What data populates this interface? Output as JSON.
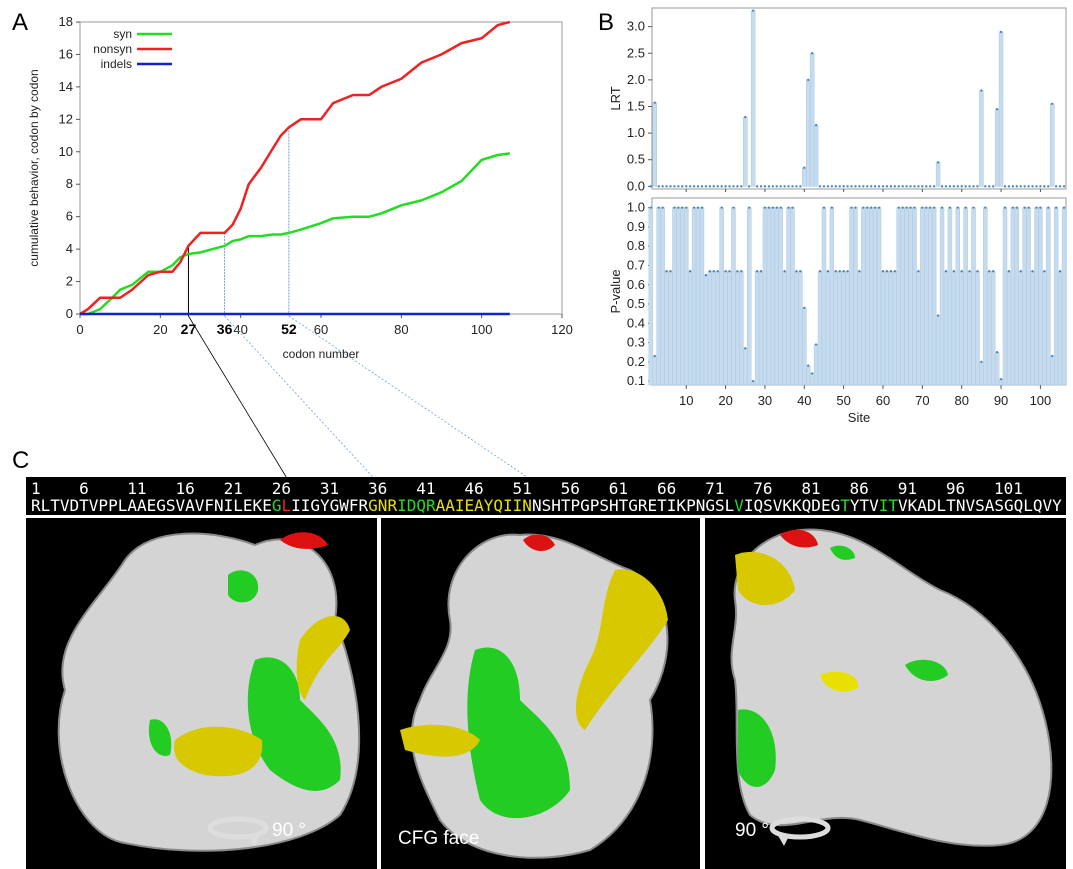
{
  "panel_labels": [
    "A",
    "B",
    "C"
  ],
  "chart_data": [
    {
      "type": "line",
      "ylabel": "cumulative behavior, codon by codon",
      "xlabel": "codon number",
      "x": [
        0,
        2,
        5,
        8,
        10,
        13,
        17,
        20,
        23,
        25,
        27,
        30,
        33,
        36,
        38,
        40,
        42,
        45,
        48,
        50,
        52,
        55,
        60,
        63,
        68,
        72,
        75,
        80,
        85,
        90,
        95,
        100,
        104,
        107
      ],
      "series": [
        {
          "name": "syn",
          "color": "#22dd22",
          "values": [
            0,
            0,
            0.3,
            1,
            1.5,
            1.8,
            2.6,
            2.6,
            3,
            3.5,
            3.7,
            3.8,
            4,
            4.2,
            4.5,
            4.6,
            4.8,
            4.8,
            4.9,
            4.9,
            5,
            5.2,
            5.6,
            5.9,
            6,
            6,
            6.2,
            6.7,
            7,
            7.5,
            8.2,
            9.5,
            9.8,
            9.9
          ]
        },
        {
          "name": "nonsyn",
          "color": "#ee2222",
          "values": [
            0,
            0.3,
            1,
            1,
            1,
            1.5,
            2.4,
            2.6,
            2.6,
            3.2,
            4.2,
            5,
            5,
            5,
            5.5,
            6.5,
            8,
            9,
            10.2,
            11,
            11.5,
            12,
            12,
            13,
            13.5,
            13.5,
            14,
            14.5,
            15.5,
            16,
            16.7,
            17,
            17.8,
            18
          ]
        },
        {
          "name": "indels",
          "color": "#1122cc",
          "values": [
            0,
            0,
            0,
            0,
            0,
            0,
            0,
            0,
            0,
            0,
            0,
            0,
            0,
            0,
            0,
            0,
            0,
            0,
            0,
            0,
            0,
            0,
            0,
            0,
            0,
            0,
            0,
            0,
            0,
            0,
            0,
            0,
            0,
            0
          ]
        }
      ],
      "xlim": [
        0,
        120
      ],
      "ylim": [
        0,
        18
      ],
      "xticks": [
        0,
        20,
        40,
        60,
        80,
        100,
        120
      ],
      "yticks": [
        0,
        2,
        4,
        6,
        8,
        10,
        12,
        14,
        16,
        18
      ],
      "markers": [
        27,
        36,
        52
      ],
      "legend": "upper left"
    },
    {
      "type": "step",
      "ylabel": "LRT",
      "x": [
        1,
        2,
        3,
        4,
        5,
        6,
        7,
        8,
        9,
        10,
        11,
        12,
        13,
        14,
        15,
        16,
        17,
        18,
        19,
        20,
        21,
        22,
        23,
        24,
        25,
        26,
        27,
        28,
        29,
        30,
        31,
        32,
        33,
        34,
        35,
        36,
        37,
        38,
        39,
        40,
        41,
        42,
        43,
        44,
        45,
        46,
        47,
        48,
        49,
        50,
        51,
        52,
        53,
        54,
        55,
        56,
        57,
        58,
        59,
        60,
        61,
        62,
        63,
        64,
        65,
        66,
        67,
        68,
        69,
        70,
        71,
        72,
        73,
        74,
        75,
        76,
        77,
        78,
        79,
        80,
        81,
        82,
        83,
        84,
        85,
        86,
        87,
        88,
        89,
        90,
        91,
        92,
        93,
        94,
        95,
        96,
        97,
        98,
        99,
        100,
        101,
        102,
        103,
        104,
        105,
        106
      ],
      "values": [
        0,
        1.57,
        0,
        0,
        0,
        0,
        0,
        0,
        0,
        0,
        0,
        0,
        0,
        0,
        0,
        0,
        0,
        0,
        0,
        0,
        0,
        0,
        0,
        0,
        1.3,
        0,
        3.3,
        0,
        0,
        0,
        0,
        0,
        0,
        0,
        0,
        0,
        0,
        0,
        0,
        0.35,
        2.0,
        2.5,
        1.15,
        0,
        0,
        0,
        0,
        0,
        0,
        0,
        0,
        0,
        0,
        0,
        0,
        0,
        0,
        0,
        0,
        0,
        0,
        0,
        0,
        0,
        0,
        0,
        0,
        0,
        0,
        0,
        0,
        0,
        0,
        0.45,
        0,
        0,
        0,
        0,
        0,
        0,
        0,
        0,
        0,
        0,
        1.8,
        0,
        0,
        0,
        1.45,
        2.9,
        0,
        0,
        0,
        0,
        0,
        0,
        0,
        0,
        0,
        0,
        0,
        0,
        1.55,
        0,
        0,
        0
      ],
      "color": "#c6dcee",
      "xlim": [
        1.3,
        106.5
      ],
      "ylim": [
        -0.05,
        3.35
      ],
      "yticks": [
        {
          "value": 0,
          "label": "0.0"
        },
        {
          "value": 0.5,
          "label": "0.5"
        },
        {
          "value": 1,
          "label": "1.0"
        },
        {
          "value": 1.5,
          "label": "1.5"
        },
        {
          "value": 2,
          "label": "2.0"
        },
        {
          "value": 2.5,
          "label": "2.5"
        },
        {
          "value": 3,
          "label": "3.0"
        }
      ]
    },
    {
      "type": "step",
      "ylabel": "P-value",
      "xlabel": "Site",
      "x": [
        1,
        2,
        3,
        4,
        5,
        6,
        7,
        8,
        9,
        10,
        11,
        12,
        13,
        14,
        15,
        16,
        17,
        18,
        19,
        20,
        21,
        22,
        23,
        24,
        25,
        26,
        27,
        28,
        29,
        30,
        31,
        32,
        33,
        34,
        35,
        36,
        37,
        38,
        39,
        40,
        41,
        42,
        43,
        44,
        45,
        46,
        47,
        48,
        49,
        50,
        51,
        52,
        53,
        54,
        55,
        56,
        57,
        58,
        59,
        60,
        61,
        62,
        63,
        64,
        65,
        66,
        67,
        68,
        69,
        70,
        71,
        72,
        73,
        74,
        75,
        76,
        77,
        78,
        79,
        80,
        81,
        82,
        83,
        84,
        85,
        86,
        87,
        88,
        89,
        90,
        91,
        92,
        93,
        94,
        95,
        96,
        97,
        98,
        99,
        100,
        101,
        102,
        103,
        104,
        105,
        106
      ],
      "values": [
        1,
        0.23,
        1,
        1,
        0.67,
        0.67,
        1,
        1,
        1,
        1,
        0.67,
        1,
        1,
        1,
        0.65,
        0.67,
        0.67,
        0.67,
        1,
        0.67,
        0.67,
        1,
        0.67,
        0.67,
        0.27,
        1,
        0.1,
        0.67,
        0.67,
        1,
        1,
        1,
        1,
        1,
        0.67,
        1,
        1,
        0.67,
        0.67,
        0.48,
        0.18,
        0.14,
        0.29,
        0.67,
        1,
        0.67,
        1,
        0.67,
        0.67,
        0.67,
        0.67,
        1,
        1,
        0.67,
        1,
        1,
        1,
        1,
        1,
        0.67,
        0.67,
        0.67,
        0.67,
        1,
        1,
        1,
        1,
        1,
        0.67,
        1,
        1,
        1,
        1,
        0.44,
        1,
        0.67,
        1,
        0.67,
        1,
        0.67,
        1,
        0.67,
        1,
        0.67,
        0.2,
        1,
        0.67,
        0.67,
        0.25,
        0.11,
        1,
        0.67,
        1,
        1,
        0.67,
        1,
        1,
        0.67,
        1,
        1,
        0.67,
        1,
        0.23,
        1,
        0.67,
        1
      ],
      "color": "#c6dcee",
      "xlim": [
        1.3,
        106.5
      ],
      "ylim": [
        0.08,
        1.05
      ],
      "xticks": [
        10,
        20,
        30,
        40,
        50,
        60,
        70,
        80,
        90,
        100
      ],
      "yticks": [
        0.1,
        0.2,
        0.3,
        0.4,
        0.5,
        0.6,
        0.7,
        0.8,
        0.9,
        {
          "value": 1,
          "label": "1.0"
        }
      ]
    }
  ],
  "sequence": {
    "numbers": [
      1,
      6,
      11,
      16,
      21,
      26,
      31,
      36,
      41,
      46,
      51,
      56,
      61,
      66,
      71,
      76,
      81,
      86,
      91,
      96,
      101
    ],
    "segments": [
      {
        "text": "RLTVDTVPPLAAEGSVAVFNILEKE",
        "color": "#ffffff"
      },
      {
        "text": "G",
        "color": "#22dd22"
      },
      {
        "text": "L",
        "color": "#ee2222"
      },
      {
        "text": "IIGYGWFR",
        "color": "#ffffff"
      },
      {
        "text": "GNR",
        "color": "#e8e000"
      },
      {
        "text": "IDQR",
        "color": "#22dd22"
      },
      {
        "text": "AAIEAYQIIN",
        "color": "#e8e000"
      },
      {
        "text": "NSHTPGPSHTGRETIKPNGSL",
        "color": "#ffffff"
      },
      {
        "text": "V",
        "color": "#22dd22"
      },
      {
        "text": "IQSVKKQDEG",
        "color": "#ffffff"
      },
      {
        "text": "T",
        "color": "#22dd22"
      },
      {
        "text": "YTV",
        "color": "#ffffff"
      },
      {
        "text": "IT",
        "color": "#22dd22"
      },
      {
        "text": "VKADLTNVSASGQLQVY",
        "color": "#ffffff"
      }
    ]
  },
  "structure_views": [
    {
      "caption": "90 °"
    },
    {
      "caption": "CFG face"
    },
    {
      "caption": "90 °"
    }
  ]
}
